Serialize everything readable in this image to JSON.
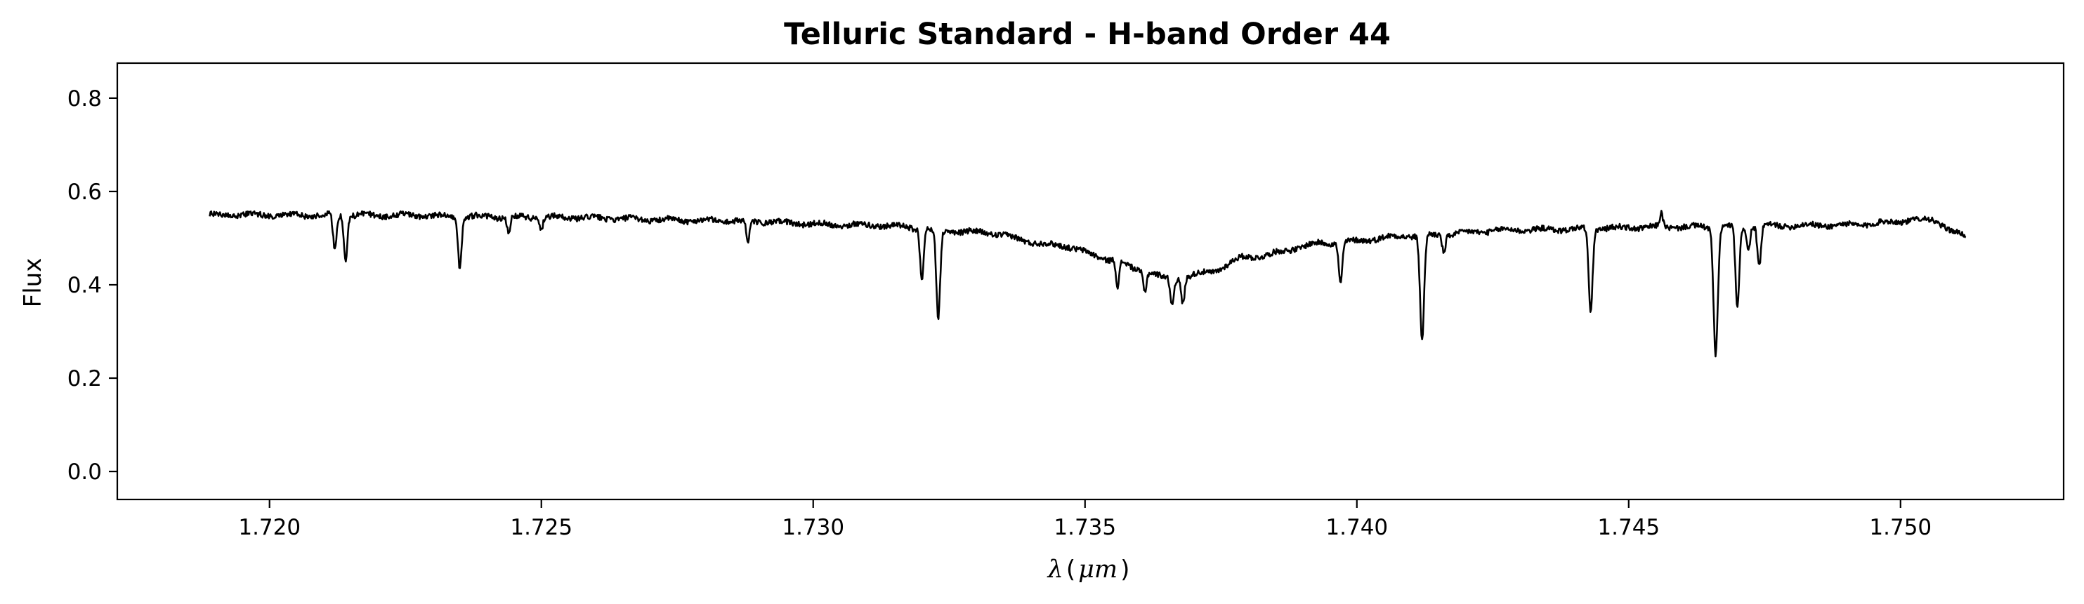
{
  "chart_data": {
    "type": "line",
    "title": "Telluric Standard - H-band Order 44",
    "xlabel_symbol": "λ",
    "xlabel_unit": "μm",
    "ylabel": "Flux",
    "xlim": [
      1.7172,
      1.753
    ],
    "ylim": [
      -0.06,
      0.875
    ],
    "xticks": [
      1.72,
      1.725,
      1.73,
      1.735,
      1.74,
      1.745,
      1.75
    ],
    "xtick_labels": [
      "1.720",
      "1.725",
      "1.730",
      "1.735",
      "1.740",
      "1.745",
      "1.750"
    ],
    "yticks": [
      0.0,
      0.2,
      0.4,
      0.6,
      0.8
    ],
    "ytick_labels": [
      "0.0",
      "0.2",
      "0.4",
      "0.6",
      "0.8"
    ],
    "grid": false,
    "legend": "none",
    "series_color": "#000000",
    "x_range": [
      1.7189,
      1.7512
    ],
    "continuum": [
      [
        1.7189,
        0.55
      ],
      [
        1.722,
        0.549
      ],
      [
        1.725,
        0.545
      ],
      [
        1.728,
        0.538
      ],
      [
        1.731,
        0.528
      ],
      [
        1.733,
        0.513
      ],
      [
        1.7345,
        0.485
      ],
      [
        1.7355,
        0.455
      ],
      [
        1.736,
        0.432
      ],
      [
        1.7366,
        0.412
      ],
      [
        1.7372,
        0.425
      ],
      [
        1.738,
        0.46
      ],
      [
        1.7395,
        0.49
      ],
      [
        1.741,
        0.505
      ],
      [
        1.743,
        0.518
      ],
      [
        1.746,
        0.524
      ],
      [
        1.749,
        0.528
      ],
      [
        1.7505,
        0.54
      ],
      [
        1.7512,
        0.505
      ]
    ],
    "absorption_lines": [
      {
        "x": 1.7212,
        "y": 0.475
      },
      {
        "x": 1.7214,
        "y": 0.452
      },
      {
        "x": 1.7235,
        "y": 0.437
      },
      {
        "x": 1.7244,
        "y": 0.513
      },
      {
        "x": 1.725,
        "y": 0.522
      },
      {
        "x": 1.7288,
        "y": 0.488
      },
      {
        "x": 1.732,
        "y": 0.41
      },
      {
        "x": 1.7323,
        "y": 0.328
      },
      {
        "x": 1.7356,
        "y": 0.396
      },
      {
        "x": 1.7361,
        "y": 0.388
      },
      {
        "x": 1.7366,
        "y": 0.356
      },
      {
        "x": 1.7368,
        "y": 0.362
      },
      {
        "x": 1.7397,
        "y": 0.402
      },
      {
        "x": 1.7412,
        "y": 0.281
      },
      {
        "x": 1.7416,
        "y": 0.47
      },
      {
        "x": 1.7443,
        "y": 0.34
      },
      {
        "x": 1.7466,
        "y": 0.251
      },
      {
        "x": 1.747,
        "y": 0.348
      },
      {
        "x": 1.7472,
        "y": 0.475
      },
      {
        "x": 1.7474,
        "y": 0.438
      }
    ],
    "emission_spikes": [
      {
        "x": 1.7456,
        "y": 0.551
      }
    ]
  }
}
